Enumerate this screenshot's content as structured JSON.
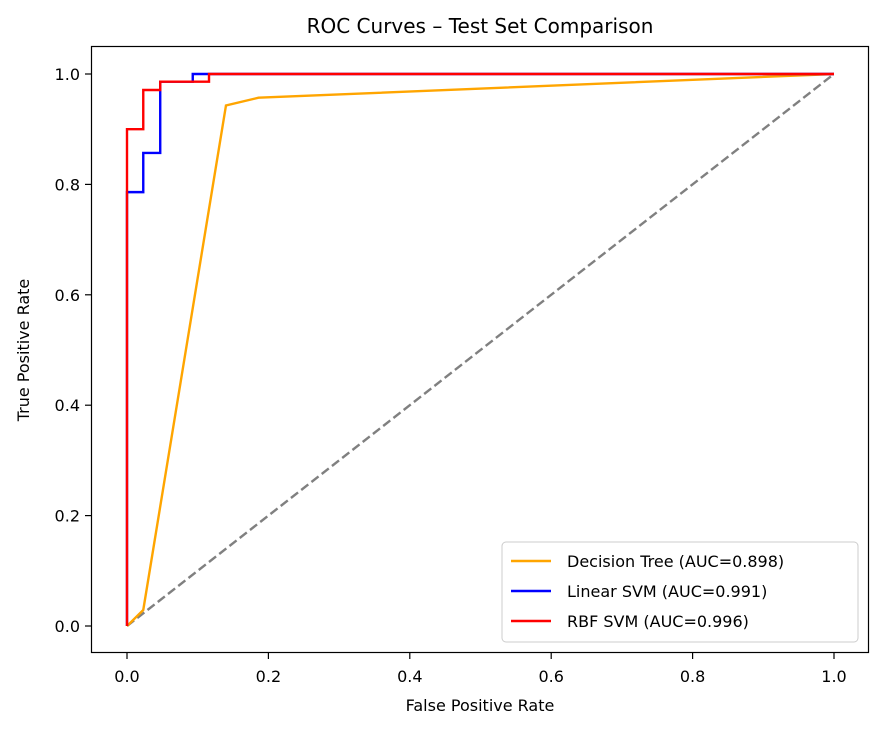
{
  "chart_data": {
    "type": "line",
    "title": "ROC Curves – Test Set Comparison",
    "xlabel": "False Positive Rate",
    "ylabel": "True Positive Rate",
    "xlim": [
      -0.05,
      1.05
    ],
    "ylim": [
      -0.05,
      1.05
    ],
    "xticks": [
      "0.0",
      "0.2",
      "0.4",
      "0.6",
      "0.8",
      "1.0"
    ],
    "yticks": [
      "0.0",
      "0.2",
      "0.4",
      "0.6",
      "0.8",
      "1.0"
    ],
    "grid": false,
    "legend_placement": "lower right",
    "series": [
      {
        "name": "Decision Tree (AUC=0.898)",
        "color": "#ffa500",
        "x": [
          0.0,
          0.023,
          0.14,
          0.186,
          1.0
        ],
        "y": [
          0.0,
          0.029,
          0.943,
          0.957,
          1.0
        ]
      },
      {
        "name": "Linear SVM (AUC=0.991)",
        "color": "#0000ff",
        "x": [
          0.0,
          0.0,
          0.0,
          0.023,
          0.023,
          0.047,
          0.047,
          0.093,
          0.093,
          1.0
        ],
        "y": [
          0.0,
          0.014,
          0.786,
          0.786,
          0.857,
          0.857,
          0.986,
          0.986,
          1.0,
          1.0
        ]
      },
      {
        "name": "RBF SVM (AUC=0.996)",
        "color": "#ff0000",
        "x": [
          0.0,
          0.0,
          0.0,
          0.023,
          0.023,
          0.047,
          0.047,
          0.116,
          0.116,
          1.0
        ],
        "y": [
          0.0,
          0.014,
          0.9,
          0.9,
          0.971,
          0.971,
          0.986,
          0.986,
          1.0,
          1.0
        ]
      }
    ],
    "reference_line": {
      "color": "#808080",
      "style": "dashed",
      "x": [
        0,
        1
      ],
      "y": [
        0,
        1
      ]
    }
  }
}
